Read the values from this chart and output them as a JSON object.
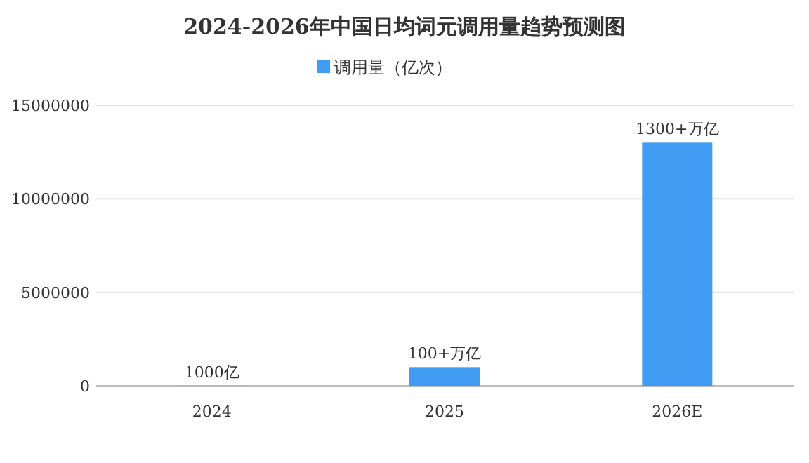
{
  "chart_data": {
    "type": "bar",
    "title": "2024-2026年中国日均词元调用量趋势预测图",
    "categories": [
      "2024",
      "2025",
      "2026E"
    ],
    "series": [
      {
        "name": "调用量（亿次）",
        "color": "#3f9cf2",
        "values": [
          1000,
          1000000,
          13000000
        ],
        "value_labels": [
          "1000亿",
          "100+万亿",
          "1300+万亿"
        ]
      }
    ],
    "ylim": [
      0,
      15000000
    ],
    "yticks": [
      0,
      5000000,
      10000000,
      15000000
    ],
    "grid": "y",
    "legend": "top"
  }
}
